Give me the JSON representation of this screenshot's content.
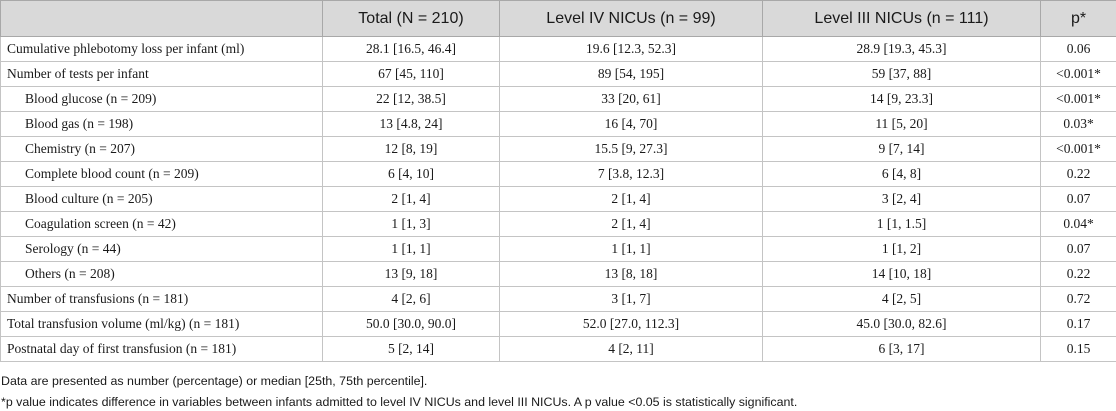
{
  "table": {
    "columns": [
      "Total (N = 210)",
      "Level IV NICUs (n = 99)",
      "Level III NICUs (n = 111)",
      "p*"
    ],
    "rows": [
      {
        "label": "Cumulative phlebotomy loss per infant (ml)",
        "indent": false,
        "total": "28.1 [16.5, 46.4]",
        "level4": "19.6 [12.3, 52.3]",
        "level3": "28.9 [19.3, 45.3]",
        "p": "0.06"
      },
      {
        "label": "Number of tests per infant",
        "indent": false,
        "total": "67 [45, 110]",
        "level4": "89 [54, 195]",
        "level3": "59 [37, 88]",
        "p": "<0.001*"
      },
      {
        "label": "Blood glucose (n = 209)",
        "indent": true,
        "total": "22 [12, 38.5]",
        "level4": "33 [20, 61]",
        "level3": "14 [9, 23.3]",
        "p": "<0.001*"
      },
      {
        "label": "Blood gas (n = 198)",
        "indent": true,
        "total": "13 [4.8, 24]",
        "level4": "16 [4, 70]",
        "level3": "11 [5, 20]",
        "p": "0.03*"
      },
      {
        "label": "Chemistry (n = 207)",
        "indent": true,
        "total": "12 [8, 19]",
        "level4": "15.5 [9, 27.3]",
        "level3": "9 [7, 14]",
        "p": "<0.001*"
      },
      {
        "label": "Complete blood count (n = 209)",
        "indent": true,
        "total": "6 [4, 10]",
        "level4": "7 [3.8, 12.3]",
        "level3": "6 [4, 8]",
        "p": "0.22"
      },
      {
        "label": "Blood culture (n = 205)",
        "indent": true,
        "total": "2 [1, 4]",
        "level4": "2 [1, 4]",
        "level3": "3 [2, 4]",
        "p": "0.07"
      },
      {
        "label": "Coagulation screen (n = 42)",
        "indent": true,
        "total": "1 [1, 3]",
        "level4": "2 [1, 4]",
        "level3": "1 [1, 1.5]",
        "p": "0.04*"
      },
      {
        "label": "Serology (n = 44)",
        "indent": true,
        "total": "1 [1, 1]",
        "level4": "1 [1, 1]",
        "level3": "1 [1, 2]",
        "p": "0.07"
      },
      {
        "label": "Others (n = 208)",
        "indent": true,
        "total": "13 [9, 18]",
        "level4": "13 [8, 18]",
        "level3": "14 [10, 18]",
        "p": "0.22"
      },
      {
        "label": "Number of transfusions (n = 181)",
        "indent": false,
        "total": "4 [2, 6]",
        "level4": "3 [1, 7]",
        "level3": "4 [2, 5]",
        "p": "0.72"
      },
      {
        "label": "Total transfusion volume (ml/kg) (n = 181)",
        "indent": false,
        "total": "50.0 [30.0, 90.0]",
        "level4": "52.0 [27.0, 112.3]",
        "level3": "45.0 [30.0, 82.6]",
        "p": "0.17"
      },
      {
        "label": "Postnatal day of first transfusion (n = 181)",
        "indent": false,
        "total": "5 [2, 14]",
        "level4": "4 [2, 11]",
        "level3": "6 [3, 17]",
        "p": "0.15"
      }
    ]
  },
  "notes": {
    "line1": "Data are presented as number (percentage) or median [25th, 75th percentile].",
    "line2": "*p value indicates difference in variables between infants admitted to level IV NICUs and level III NICUs. A p value <0.05 is statistically significant."
  },
  "colors": {
    "header_bg": "#d9d9d9",
    "border": "#c4c4c4",
    "text": "#1a1a1a"
  }
}
